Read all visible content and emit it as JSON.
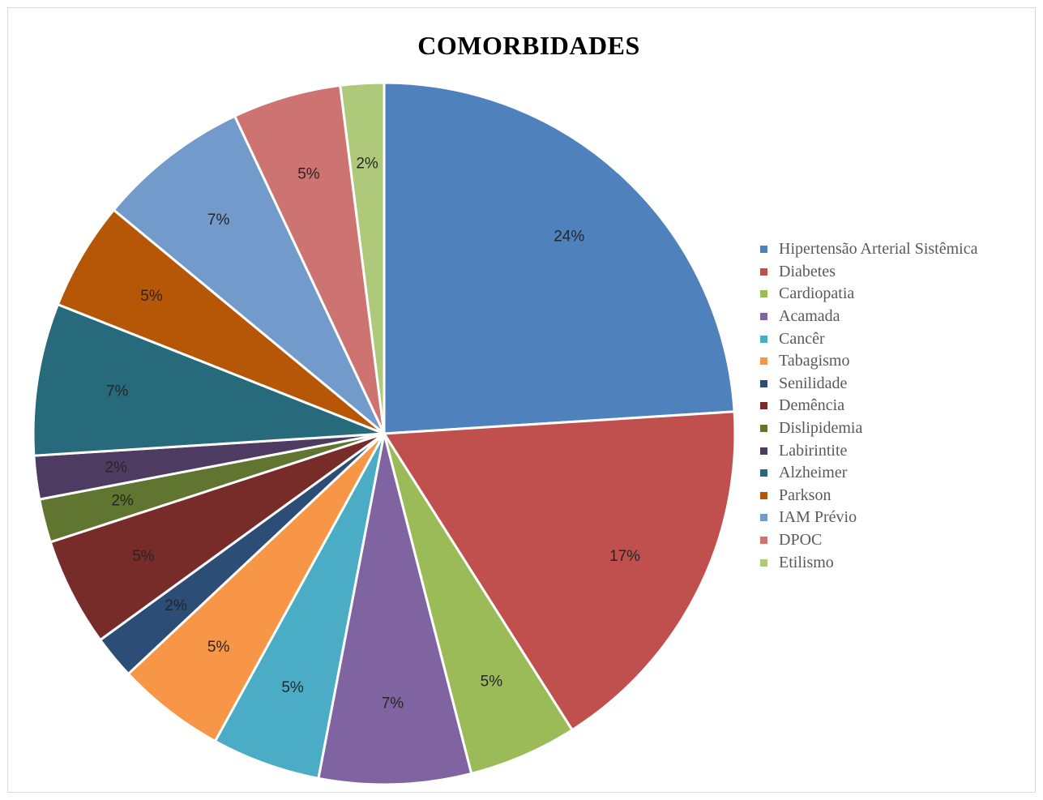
{
  "chart_data": {
    "type": "pie",
    "title": "COMORBIDADES",
    "categories": [
      "Hipertensão Arterial Sistêmica",
      "Diabetes",
      "Cardiopatia",
      "Acamada",
      "Cancêr",
      "Tabagismo",
      "Senilidade",
      "Demência",
      "Dislipidemia",
      "Labirintite",
      "Alzheimer",
      "Parkson",
      "IAM Prévio",
      "DPOC",
      "Etilismo"
    ],
    "values": [
      24,
      17,
      5,
      7,
      5,
      5,
      2,
      5,
      2,
      2,
      7,
      5,
      7,
      5,
      2
    ],
    "data_labels": [
      "24%",
      "17%",
      "5%",
      "7%",
      "5%",
      "5%",
      "2%",
      "5%",
      "2%",
      "2%",
      "7%",
      "5%",
      "7%",
      "5%",
      "2%"
    ],
    "colors": [
      "#4F81BD",
      "#C0504D",
      "#9BBB59",
      "#8064A2",
      "#4BACC6",
      "#F79646",
      "#2C4D75",
      "#772C2A",
      "#5F7530",
      "#4D3B62",
      "#276A7C",
      "#B65708",
      "#729ACA",
      "#CD7371",
      "#AFC97A"
    ],
    "legend_position": "right"
  }
}
